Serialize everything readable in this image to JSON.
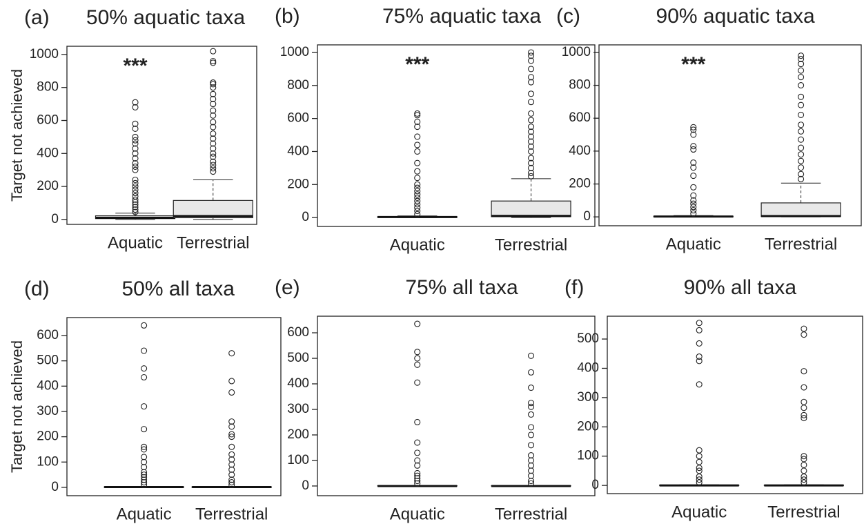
{
  "chart_data": [
    {
      "type": "box",
      "panel": "(a)",
      "title": "50% aquatic taxa",
      "ylabel": "Target not achieved",
      "annotation": "***",
      "categories": [
        "Aquatic",
        "Terrestrial"
      ],
      "color": "#e8e8e8",
      "boxes": [
        {
          "whisker_low": 0,
          "q1": 5,
          "median": 10,
          "q3": 22,
          "whisker_high": 38,
          "outliers": [
            45,
            60,
            75,
            90,
            105,
            120,
            140,
            160,
            180,
            200,
            220,
            240,
            300,
            320,
            340,
            370,
            400,
            430,
            460,
            480,
            500,
            550,
            580,
            680,
            710
          ]
        },
        {
          "whisker_low": 0,
          "q1": 10,
          "median": 20,
          "q3": 115,
          "whisker_high": 240,
          "outliers": [
            290,
            310,
            330,
            350,
            380,
            400,
            430,
            460,
            490,
            520,
            560,
            590,
            630,
            660,
            700,
            730,
            760,
            800,
            820,
            830,
            950,
            960,
            1020
          ]
        }
      ],
      "ylim": [
        -30,
        1050
      ],
      "yticks": [
        0,
        200,
        400,
        600,
        800,
        1000
      ]
    },
    {
      "type": "box",
      "panel": "(b)",
      "title": "75% aquatic taxa",
      "annotation": "***",
      "categories": [
        "Aquatic",
        "Terrestrial"
      ],
      "color": "#e8e8e8",
      "boxes": [
        {
          "whisker_low": 0,
          "q1": 1,
          "median": 3,
          "q3": 5,
          "whisker_high": 10,
          "outliers": [
            20,
            40,
            60,
            80,
            100,
            120,
            140,
            160,
            180,
            200,
            240,
            280,
            330,
            400,
            440,
            490,
            550,
            580,
            620,
            630
          ]
        },
        {
          "whisker_low": 0,
          "q1": 5,
          "median": 10,
          "q3": 100,
          "whisker_high": 235,
          "outliers": [
            250,
            270,
            300,
            330,
            360,
            400,
            430,
            460,
            490,
            520,
            550,
            590,
            630,
            700,
            750,
            820,
            850,
            900,
            950,
            980,
            1000
          ]
        }
      ],
      "ylim": [
        -54,
        1046
      ],
      "yticks": [
        0,
        200,
        400,
        600,
        800,
        1000
      ]
    },
    {
      "type": "box",
      "panel": "(c)",
      "title": "90% aquatic taxa",
      "annotation": "***",
      "categories": [
        "Aquatic",
        "Terrestrial"
      ],
      "color": "#e8e8e8",
      "boxes": [
        {
          "whisker_low": 0,
          "q1": 0,
          "median": 2,
          "q3": 4,
          "whisker_high": 8,
          "outliers": [
            20,
            40,
            60,
            80,
            100,
            130,
            180,
            250,
            300,
            330,
            410,
            430,
            500,
            530,
            545
          ]
        },
        {
          "whisker_low": 0,
          "q1": 2,
          "median": 5,
          "q3": 85,
          "whisker_high": 205,
          "outliers": [
            230,
            260,
            300,
            340,
            380,
            420,
            470,
            520,
            560,
            620,
            680,
            730,
            800,
            850,
            890,
            930,
            960,
            980
          ]
        }
      ],
      "ylim": [
        -54,
        1046
      ],
      "yticks": [
        0,
        200,
        400,
        600,
        800,
        1000
      ]
    },
    {
      "type": "box",
      "panel": "(d)",
      "title": "50% all taxa",
      "ylabel": "Target not achieved",
      "categories": [
        "Aquatic",
        "Terrestrial"
      ],
      "color": "#e8e8e8",
      "boxes": [
        {
          "whisker_low": 0,
          "q1": 0,
          "median": 1,
          "q3": 2,
          "whisker_high": 3,
          "outliers": [
            10,
            20,
            30,
            40,
            50,
            60,
            80,
            100,
            120,
            150,
            160,
            230,
            320,
            435,
            470,
            540,
            640
          ]
        },
        {
          "whisker_low": 0,
          "q1": 0,
          "median": 1,
          "q3": 2,
          "whisker_high": 3,
          "outliers": [
            10,
            20,
            30,
            50,
            70,
            90,
            110,
            130,
            160,
            200,
            210,
            240,
            260,
            375,
            420,
            530
          ]
        }
      ],
      "ylim": [
        -33,
        671
      ],
      "yticks": [
        0,
        100,
        200,
        300,
        400,
        500,
        600
      ]
    },
    {
      "type": "box",
      "panel": "(e)",
      "title": "75% all taxa",
      "categories": [
        "Aquatic",
        "Terrestrial"
      ],
      "color": "#e8e8e8",
      "boxes": [
        {
          "whisker_low": 0,
          "q1": 0,
          "median": 0,
          "q3": 1,
          "whisker_high": 2,
          "outliers": [
            10,
            20,
            30,
            40,
            50,
            80,
            100,
            130,
            170,
            250,
            405,
            475,
            500,
            525,
            635
          ]
        },
        {
          "whisker_low": 0,
          "q1": 0,
          "median": 0,
          "q3": 1,
          "whisker_high": 2,
          "outliers": [
            10,
            20,
            40,
            60,
            80,
            100,
            120,
            160,
            200,
            230,
            280,
            310,
            325,
            385,
            445,
            510
          ]
        }
      ],
      "ylim": [
        -38,
        665
      ],
      "yticks": [
        0,
        100,
        200,
        300,
        400,
        500,
        600
      ]
    },
    {
      "type": "box",
      "panel": "(f)",
      "title": "90% all taxa",
      "categories": [
        "Aquatic",
        "Terrestrial"
      ],
      "color": "#e8e8e8",
      "boxes": [
        {
          "whisker_low": 0,
          "q1": 0,
          "median": 0,
          "q3": 1,
          "whisker_high": 2,
          "outliers": [
            10,
            20,
            30,
            50,
            60,
            80,
            100,
            120,
            345,
            425,
            440,
            485,
            530,
            555
          ]
        },
        {
          "whisker_low": 0,
          "q1": 0,
          "median": 0,
          "q3": 1,
          "whisker_high": 2,
          "outliers": [
            10,
            20,
            30,
            50,
            70,
            90,
            100,
            230,
            240,
            265,
            285,
            335,
            390,
            515,
            535
          ]
        }
      ],
      "ylim": [
        -28,
        578
      ],
      "yticks": [
        0,
        100,
        200,
        300,
        400,
        500
      ]
    }
  ]
}
